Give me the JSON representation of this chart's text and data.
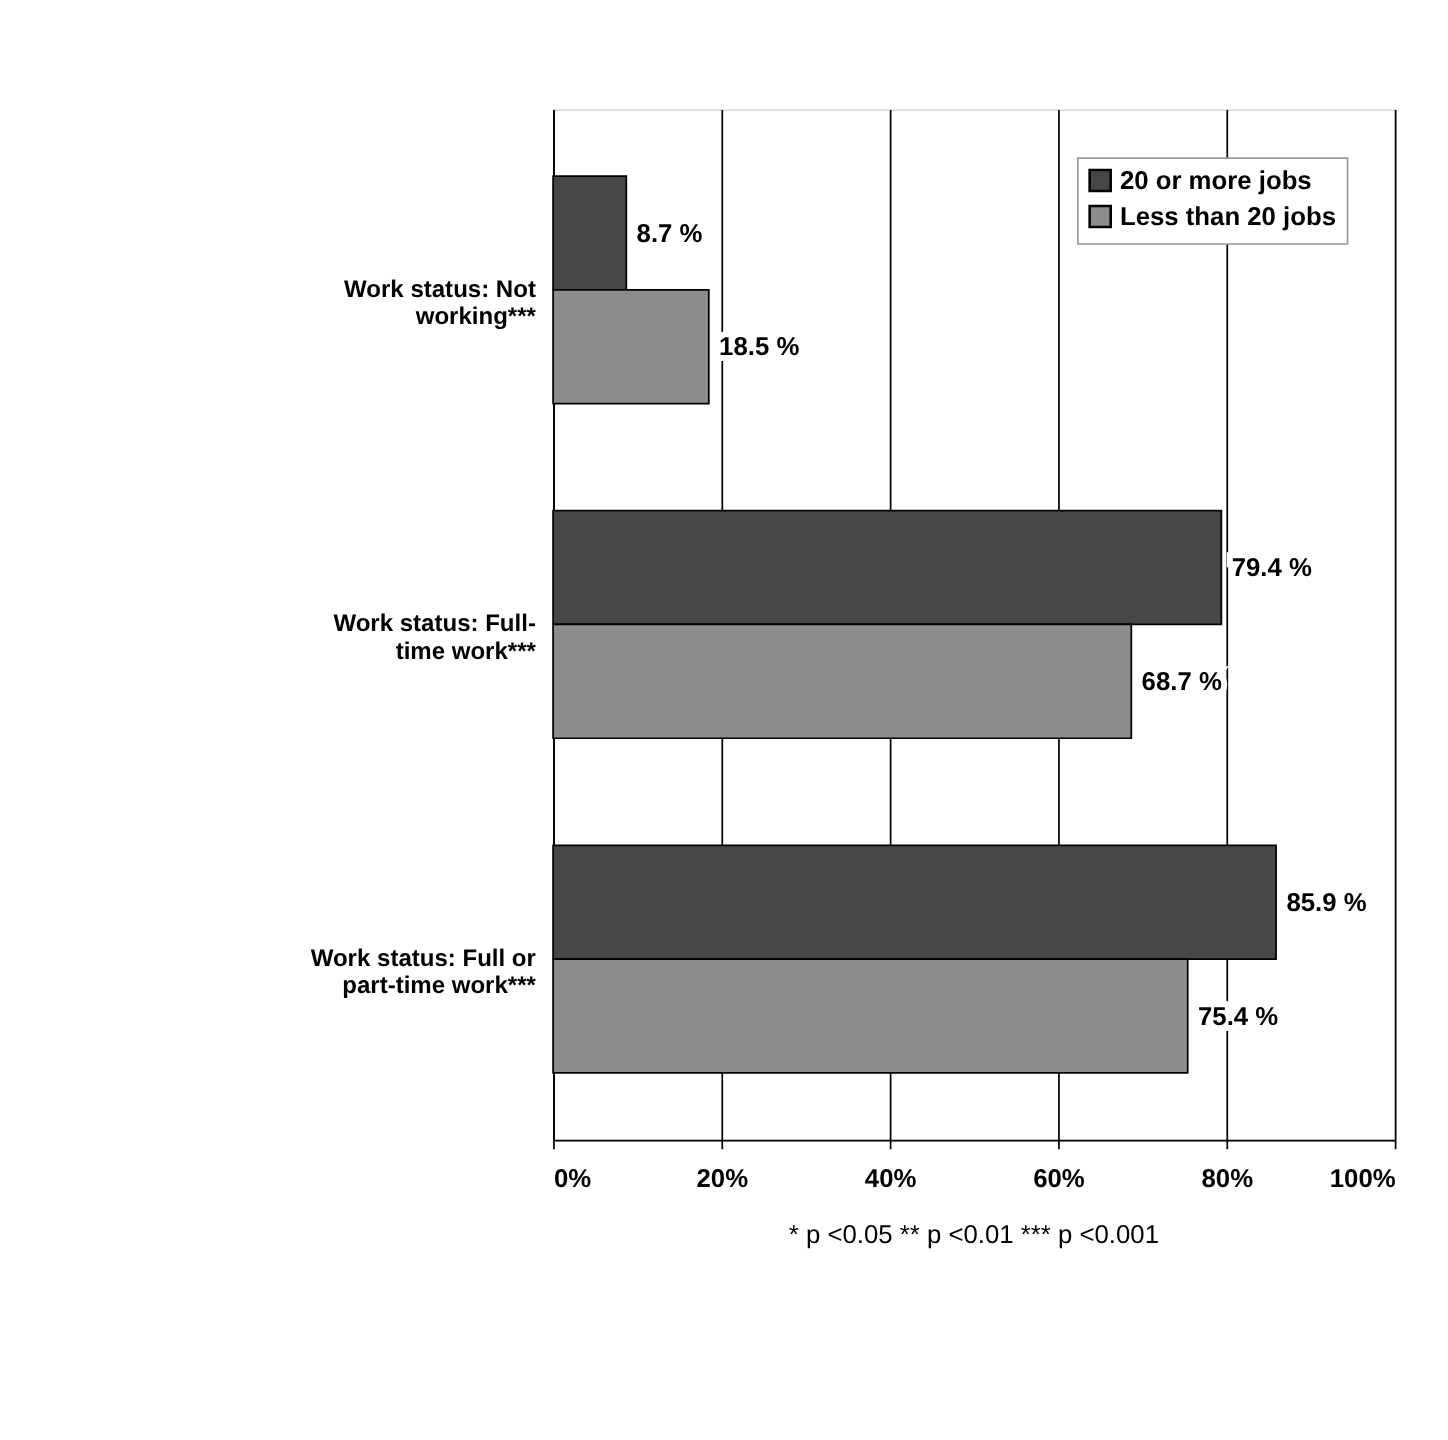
{
  "chart_data": {
    "type": "bar",
    "orientation": "horizontal",
    "categories": [
      "Work status: Not working***",
      "Work status: Full-time work***",
      "Work status: Full or part-time work***"
    ],
    "series": [
      {
        "name": "20 or more jobs",
        "color": "#474747",
        "values": [
          8.7,
          79.4,
          85.9
        ],
        "value_labels": [
          "8.7 %",
          "79.4 %",
          "85.9 %"
        ]
      },
      {
        "name": "Less than 20 jobs",
        "color": "#8c8c8c",
        "values": [
          18.5,
          68.7,
          75.4
        ],
        "value_labels": [
          "18.5 %",
          "68.7 %",
          "75.4 %"
        ]
      }
    ],
    "xlim": [
      0,
      100
    ],
    "xticks": [
      {
        "value": 0,
        "label": "0%"
      },
      {
        "value": 20,
        "label": "20%"
      },
      {
        "value": 40,
        "label": "40%"
      },
      {
        "value": 60,
        "label": "60%"
      },
      {
        "value": 80,
        "label": "80%"
      },
      {
        "value": 100,
        "label": "100%"
      }
    ],
    "grid": "x",
    "legend": "top right",
    "annotations": [
      "* p <0.05     ** p <0.01     *** p <0.001"
    ]
  }
}
